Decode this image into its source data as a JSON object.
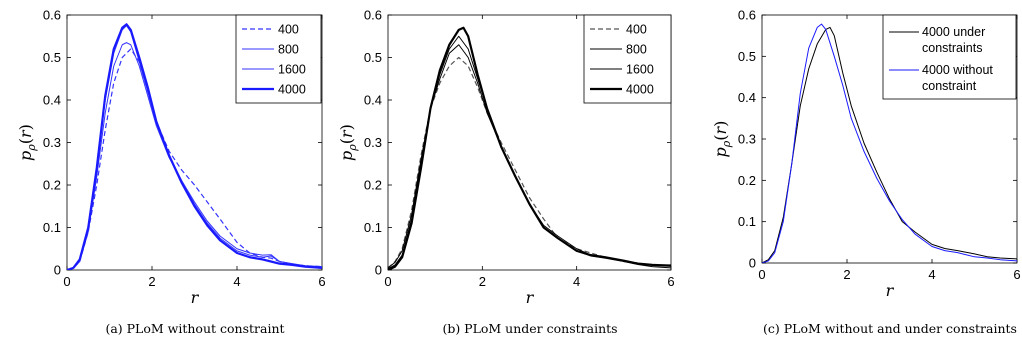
{
  "chart_data": [
    {
      "type": "line",
      "caption": "(a) PLoM without constraint",
      "xlabel": "r",
      "ylabel": "p_ρ(r)",
      "xlim": [
        0,
        6
      ],
      "ylim": [
        0,
        0.6
      ],
      "xticks": [
        "0",
        "2",
        "4",
        "6"
      ],
      "yticks": [
        "0",
        "0.1",
        "0.2",
        "0.3",
        "0.4",
        "0.5",
        "0.6"
      ],
      "legend_position": "top-right",
      "series": [
        {
          "name": "400",
          "color": "#3333ff",
          "style": "dashed",
          "width": 1.2,
          "x": [
            0,
            0.15,
            0.3,
            0.5,
            0.7,
            0.9,
            1.1,
            1.3,
            1.5,
            1.7,
            1.9,
            2.1,
            2.4,
            2.7,
            3.0,
            3.3,
            3.6,
            4.0,
            4.3,
            4.6,
            4.8,
            5.0,
            5.3,
            5.6,
            6.0
          ],
          "y": [
            0,
            0.004,
            0.02,
            0.09,
            0.2,
            0.33,
            0.44,
            0.5,
            0.52,
            0.49,
            0.42,
            0.35,
            0.28,
            0.235,
            0.2,
            0.16,
            0.12,
            0.065,
            0.04,
            0.03,
            0.028,
            0.02,
            0.014,
            0.01,
            0.008
          ]
        },
        {
          "name": "800",
          "color": "#3333ff",
          "style": "solid",
          "width": 1.0,
          "x": [
            0,
            0.15,
            0.3,
            0.5,
            0.7,
            0.9,
            1.1,
            1.3,
            1.4,
            1.5,
            1.7,
            1.9,
            2.1,
            2.4,
            2.7,
            3.0,
            3.3,
            3.6,
            4.0,
            4.3,
            4.6,
            4.8,
            5.0,
            5.3,
            5.6,
            6.0
          ],
          "y": [
            0,
            0.004,
            0.02,
            0.09,
            0.22,
            0.37,
            0.48,
            0.53,
            0.535,
            0.53,
            0.48,
            0.41,
            0.34,
            0.265,
            0.21,
            0.16,
            0.115,
            0.08,
            0.05,
            0.04,
            0.035,
            0.036,
            0.02,
            0.015,
            0.01,
            0.008
          ]
        },
        {
          "name": "1600",
          "color": "#3333ff",
          "style": "solid",
          "width": 1.0,
          "x": [
            0,
            0.15,
            0.3,
            0.5,
            0.7,
            0.9,
            1.1,
            1.3,
            1.4,
            1.5,
            1.7,
            1.9,
            2.1,
            2.4,
            2.7,
            3.0,
            3.3,
            3.6,
            4.0,
            4.3,
            4.6,
            4.8,
            5.0,
            5.3,
            5.6,
            6.0
          ],
          "y": [
            0,
            0.005,
            0.025,
            0.1,
            0.24,
            0.4,
            0.51,
            0.565,
            0.575,
            0.56,
            0.49,
            0.42,
            0.345,
            0.27,
            0.21,
            0.155,
            0.11,
            0.075,
            0.045,
            0.035,
            0.03,
            0.033,
            0.02,
            0.014,
            0.01,
            0.007
          ]
        },
        {
          "name": "4000",
          "color": "#1a1aff",
          "style": "solid",
          "width": 2.2,
          "x": [
            0,
            0.15,
            0.3,
            0.5,
            0.7,
            0.9,
            1.1,
            1.3,
            1.4,
            1.5,
            1.7,
            1.9,
            2.1,
            2.4,
            2.7,
            3.0,
            3.3,
            3.6,
            4.0,
            4.3,
            4.6,
            4.8,
            5.0,
            5.3,
            5.6,
            6.0
          ],
          "y": [
            0,
            0.005,
            0.025,
            0.1,
            0.24,
            0.41,
            0.52,
            0.57,
            0.578,
            0.565,
            0.5,
            0.43,
            0.35,
            0.27,
            0.205,
            0.15,
            0.105,
            0.07,
            0.04,
            0.03,
            0.025,
            0.02,
            0.015,
            0.012,
            0.008,
            0.005
          ]
        }
      ]
    },
    {
      "type": "line",
      "caption": "(b) PLoM under constraints",
      "xlabel": "r",
      "ylabel": "p_ρ(r)",
      "xlim": [
        0,
        6
      ],
      "ylim": [
        0,
        0.6
      ],
      "xticks": [
        "0",
        "2",
        "4",
        "6"
      ],
      "yticks": [
        "0",
        "0.1",
        "0.2",
        "0.3",
        "0.4",
        "0.5",
        "0.6"
      ],
      "legend_position": "top-right",
      "series": [
        {
          "name": "400",
          "color": "#555555",
          "style": "dashed",
          "width": 1.2,
          "x": [
            0,
            0.15,
            0.3,
            0.5,
            0.7,
            0.9,
            1.1,
            1.3,
            1.5,
            1.7,
            1.9,
            2.1,
            2.4,
            2.7,
            3.0,
            3.3,
            3.6,
            4.0,
            4.3,
            4.6,
            5.0,
            5.3,
            5.6,
            6.0
          ],
          "y": [
            0.005,
            0.02,
            0.05,
            0.14,
            0.27,
            0.38,
            0.44,
            0.48,
            0.5,
            0.48,
            0.43,
            0.37,
            0.3,
            0.235,
            0.17,
            0.12,
            0.075,
            0.05,
            0.04,
            0.03,
            0.02,
            0.015,
            0.012,
            0.01
          ]
        },
        {
          "name": "800",
          "color": "#000000",
          "style": "solid",
          "width": 1.0,
          "x": [
            0,
            0.15,
            0.3,
            0.5,
            0.7,
            0.9,
            1.1,
            1.3,
            1.5,
            1.7,
            1.9,
            2.1,
            2.4,
            2.7,
            3.0,
            3.3,
            3.6,
            4.0,
            4.3,
            4.6,
            5.0,
            5.3,
            5.6,
            6.0
          ],
          "y": [
            0.005,
            0.018,
            0.045,
            0.13,
            0.26,
            0.38,
            0.45,
            0.51,
            0.53,
            0.5,
            0.44,
            0.37,
            0.29,
            0.22,
            0.155,
            0.105,
            0.08,
            0.05,
            0.035,
            0.03,
            0.022,
            0.015,
            0.012,
            0.012
          ]
        },
        {
          "name": "1600",
          "color": "#000000",
          "style": "solid",
          "width": 1.0,
          "x": [
            0,
            0.15,
            0.3,
            0.5,
            0.7,
            0.9,
            1.1,
            1.3,
            1.5,
            1.7,
            1.9,
            2.1,
            2.4,
            2.7,
            3.0,
            3.3,
            3.6,
            4.0,
            4.3,
            4.6,
            5.0,
            5.3,
            5.6,
            6.0
          ],
          "y": [
            0.003,
            0.012,
            0.035,
            0.12,
            0.25,
            0.38,
            0.46,
            0.52,
            0.55,
            0.52,
            0.45,
            0.38,
            0.29,
            0.22,
            0.155,
            0.1,
            0.075,
            0.045,
            0.033,
            0.028,
            0.02,
            0.013,
            0.008,
            0.005
          ]
        },
        {
          "name": "4000",
          "color": "#000000",
          "style": "solid",
          "width": 2.2,
          "x": [
            0,
            0.15,
            0.3,
            0.5,
            0.7,
            0.9,
            1.1,
            1.3,
            1.5,
            1.6,
            1.7,
            1.9,
            2.1,
            2.4,
            2.7,
            3.0,
            3.3,
            3.6,
            4.0,
            4.3,
            4.6,
            5.0,
            5.3,
            5.6,
            6.0
          ],
          "y": [
            0,
            0.008,
            0.03,
            0.11,
            0.24,
            0.38,
            0.47,
            0.53,
            0.565,
            0.57,
            0.55,
            0.46,
            0.38,
            0.29,
            0.22,
            0.155,
            0.1,
            0.075,
            0.045,
            0.035,
            0.03,
            0.022,
            0.015,
            0.012,
            0.01
          ]
        }
      ]
    },
    {
      "type": "line",
      "caption": "(c) PLoM without and under constraints",
      "xlabel": "r",
      "ylabel": "p_ρ(r)",
      "xlim": [
        0,
        6
      ],
      "ylim": [
        0,
        0.6
      ],
      "xticks": [
        "0",
        "2",
        "4",
        "6"
      ],
      "yticks": [
        "0",
        "0.1",
        "0.2",
        "0.3",
        "0.4",
        "0.5",
        "0.6"
      ],
      "legend_position": "top-right",
      "series": [
        {
          "name": "4000 under constraints",
          "legend_lines": [
            "4000 under",
            "constraints"
          ],
          "color": "#000000",
          "style": "solid",
          "width": 1.0,
          "x": [
            0,
            0.15,
            0.3,
            0.5,
            0.7,
            0.9,
            1.1,
            1.3,
            1.5,
            1.6,
            1.7,
            1.9,
            2.1,
            2.4,
            2.7,
            3.0,
            3.3,
            3.6,
            4.0,
            4.3,
            4.6,
            5.0,
            5.3,
            5.6,
            6.0
          ],
          "y": [
            0,
            0.008,
            0.03,
            0.11,
            0.24,
            0.38,
            0.47,
            0.53,
            0.565,
            0.57,
            0.55,
            0.46,
            0.38,
            0.29,
            0.22,
            0.155,
            0.1,
            0.075,
            0.045,
            0.035,
            0.03,
            0.022,
            0.015,
            0.012,
            0.01
          ]
        },
        {
          "name": "4000 without constraint",
          "legend_lines": [
            "4000 without",
            "constraint"
          ],
          "color": "#1a1aff",
          "style": "solid",
          "width": 1.0,
          "x": [
            0,
            0.15,
            0.3,
            0.5,
            0.7,
            0.9,
            1.1,
            1.3,
            1.4,
            1.5,
            1.7,
            1.9,
            2.1,
            2.4,
            2.7,
            3.0,
            3.3,
            3.6,
            4.0,
            4.3,
            4.6,
            4.8,
            5.0,
            5.3,
            5.6,
            6.0
          ],
          "y": [
            0,
            0.005,
            0.025,
            0.1,
            0.24,
            0.41,
            0.52,
            0.57,
            0.578,
            0.565,
            0.5,
            0.43,
            0.35,
            0.27,
            0.205,
            0.15,
            0.105,
            0.07,
            0.04,
            0.03,
            0.025,
            0.02,
            0.015,
            0.012,
            0.008,
            0.005
          ]
        }
      ]
    }
  ]
}
